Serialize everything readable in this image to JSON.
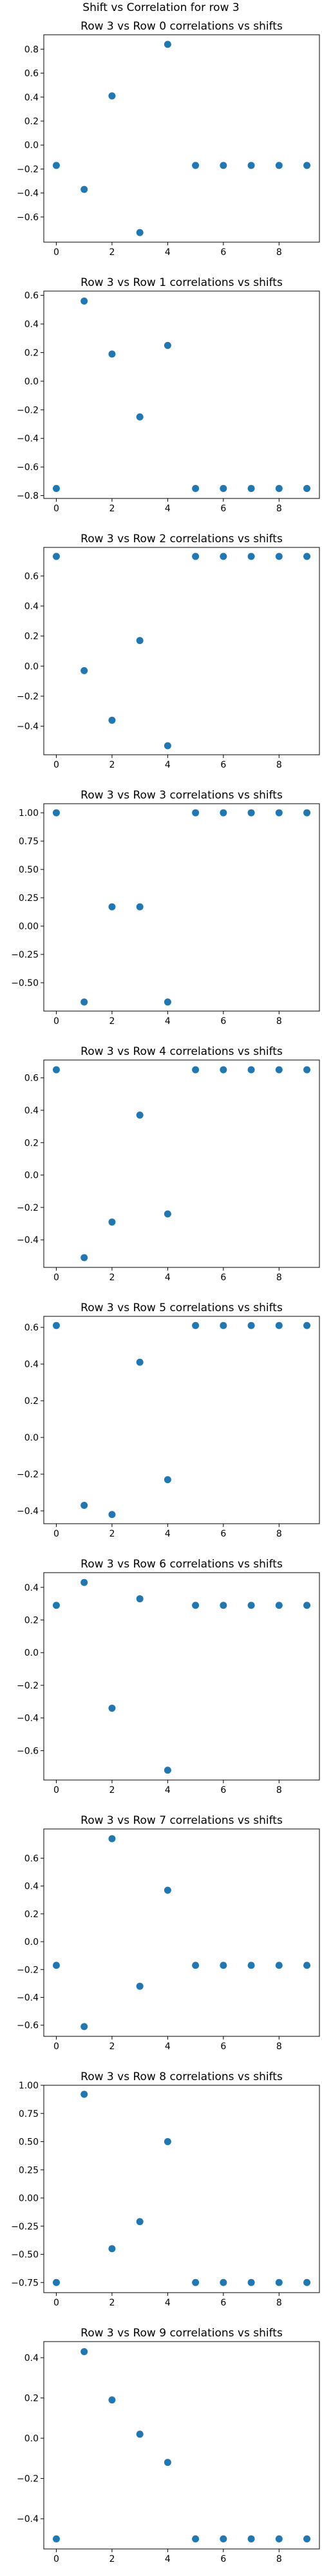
{
  "figure": {
    "suptitle": "Shift vs Correlation for row 3"
  },
  "style": {
    "marker_color": "#1f77b4"
  },
  "chart_data": [
    {
      "type": "scatter",
      "title": "Row 3 vs Row 0 correlations vs shifts",
      "x": [
        0,
        1,
        2,
        3,
        4,
        5,
        6,
        7,
        8,
        9
      ],
      "y": [
        -0.17,
        -0.37,
        0.41,
        -0.73,
        0.84,
        -0.17,
        -0.17,
        -0.17,
        -0.17,
        -0.17
      ],
      "xticks": [
        0,
        2,
        4,
        6,
        8
      ],
      "yticks": [
        -0.6,
        -0.4,
        -0.2,
        0.0,
        0.2,
        0.4,
        0.6,
        0.8
      ],
      "ytick_labels": [
        "−0.6",
        "−0.4",
        "−0.2",
        "0.0",
        "0.2",
        "0.4",
        "0.6",
        "0.8"
      ],
      "xlim": [
        -0.45,
        9.45
      ],
      "ylim": [
        -0.81,
        0.92
      ]
    },
    {
      "type": "scatter",
      "title": "Row 3 vs Row 1 correlations vs shifts",
      "x": [
        0,
        1,
        2,
        3,
        4,
        5,
        6,
        7,
        8,
        9
      ],
      "y": [
        -0.75,
        0.56,
        0.19,
        -0.25,
        0.25,
        -0.75,
        -0.75,
        -0.75,
        -0.75,
        -0.75
      ],
      "xticks": [
        0,
        2,
        4,
        6,
        8
      ],
      "yticks": [
        -0.8,
        -0.6,
        -0.4,
        -0.2,
        0.0,
        0.2,
        0.4,
        0.6
      ],
      "ytick_labels": [
        "−0.8",
        "−0.6",
        "−0.4",
        "−0.2",
        "0.0",
        "0.2",
        "0.4",
        "0.6"
      ],
      "xlim": [
        -0.45,
        9.45
      ],
      "ylim": [
        -0.82,
        0.63
      ]
    },
    {
      "type": "scatter",
      "title": "Row 3 vs Row 2 correlations vs shifts",
      "x": [
        0,
        1,
        2,
        3,
        4,
        5,
        6,
        7,
        8,
        9
      ],
      "y": [
        0.73,
        -0.03,
        -0.36,
        0.17,
        -0.53,
        0.73,
        0.73,
        0.73,
        0.73,
        0.73
      ],
      "xticks": [
        0,
        2,
        4,
        6,
        8
      ],
      "yticks": [
        -0.4,
        -0.2,
        0.0,
        0.2,
        0.4,
        0.6
      ],
      "ytick_labels": [
        "−0.4",
        "−0.2",
        "0.0",
        "0.2",
        "0.4",
        "0.6"
      ],
      "xlim": [
        -0.45,
        9.45
      ],
      "ylim": [
        -0.59,
        0.79
      ]
    },
    {
      "type": "scatter",
      "title": "Row 3 vs Row 3 correlations vs shifts",
      "x": [
        0,
        1,
        2,
        3,
        4,
        5,
        6,
        7,
        8,
        9
      ],
      "y": [
        1.0,
        -0.67,
        0.17,
        0.17,
        -0.67,
        1.0,
        1.0,
        1.0,
        1.0,
        1.0
      ],
      "xticks": [
        0,
        2,
        4,
        6,
        8
      ],
      "yticks": [
        -0.5,
        -0.25,
        0.0,
        0.25,
        0.5,
        0.75,
        1.0
      ],
      "ytick_labels": [
        "−0.50",
        "−0.25",
        "0.00",
        "0.25",
        "0.50",
        "0.75",
        "1.00"
      ],
      "xlim": [
        -0.45,
        9.45
      ],
      "ylim": [
        -0.75,
        1.08
      ]
    },
    {
      "type": "scatter",
      "title": "Row 3 vs Row 4 correlations vs shifts",
      "x": [
        0,
        1,
        2,
        3,
        4,
        5,
        6,
        7,
        8,
        9
      ],
      "y": [
        0.65,
        -0.51,
        -0.29,
        0.37,
        -0.24,
        0.65,
        0.65,
        0.65,
        0.65,
        0.65
      ],
      "xticks": [
        0,
        2,
        4,
        6,
        8
      ],
      "yticks": [
        -0.4,
        -0.2,
        0.0,
        0.2,
        0.4,
        0.6
      ],
      "ytick_labels": [
        "−0.4",
        "−0.2",
        "0.0",
        "0.2",
        "0.4",
        "0.6"
      ],
      "xlim": [
        -0.45,
        9.45
      ],
      "ylim": [
        -0.57,
        0.71
      ]
    },
    {
      "type": "scatter",
      "title": "Row 3 vs Row 5 correlations vs shifts",
      "x": [
        0,
        1,
        2,
        3,
        4,
        5,
        6,
        7,
        8,
        9
      ],
      "y": [
        0.61,
        -0.37,
        -0.42,
        0.41,
        -0.23,
        0.61,
        0.61,
        0.61,
        0.61,
        0.61
      ],
      "xticks": [
        0,
        2,
        4,
        6,
        8
      ],
      "yticks": [
        -0.4,
        -0.2,
        0.0,
        0.2,
        0.4,
        0.6
      ],
      "ytick_labels": [
        "−0.4",
        "−0.2",
        "0.0",
        "0.2",
        "0.4",
        "0.6"
      ],
      "xlim": [
        -0.45,
        9.45
      ],
      "ylim": [
        -0.47,
        0.66
      ]
    },
    {
      "type": "scatter",
      "title": "Row 3 vs Row 6 correlations vs shifts",
      "x": [
        0,
        1,
        2,
        3,
        4,
        5,
        6,
        7,
        8,
        9
      ],
      "y": [
        0.29,
        0.43,
        -0.34,
        0.33,
        -0.72,
        0.29,
        0.29,
        0.29,
        0.29,
        0.29
      ],
      "xticks": [
        0,
        2,
        4,
        6,
        8
      ],
      "yticks": [
        -0.6,
        -0.4,
        -0.2,
        0.0,
        0.2,
        0.4
      ],
      "ytick_labels": [
        "−0.6",
        "−0.4",
        "−0.2",
        "0.0",
        "0.2",
        "0.4"
      ],
      "xlim": [
        -0.45,
        9.45
      ],
      "ylim": [
        -0.78,
        0.49
      ]
    },
    {
      "type": "scatter",
      "title": "Row 3 vs Row 7 correlations vs shifts",
      "x": [
        0,
        1,
        2,
        3,
        4,
        5,
        6,
        7,
        8,
        9
      ],
      "y": [
        -0.17,
        -0.61,
        0.74,
        -0.32,
        0.37,
        -0.17,
        -0.17,
        -0.17,
        -0.17,
        -0.17
      ],
      "xticks": [
        0,
        2,
        4,
        6,
        8
      ],
      "yticks": [
        -0.6,
        -0.4,
        -0.2,
        0.0,
        0.2,
        0.4,
        0.6
      ],
      "ytick_labels": [
        "−0.6",
        "−0.4",
        "−0.2",
        "0.0",
        "0.2",
        "0.4",
        "0.6"
      ],
      "xlim": [
        -0.45,
        9.45
      ],
      "ylim": [
        -0.68,
        0.81
      ]
    },
    {
      "type": "scatter",
      "title": "Row 3 vs Row 8 correlations vs shifts",
      "x": [
        0,
        1,
        2,
        3,
        4,
        5,
        6,
        7,
        8,
        9
      ],
      "y": [
        -0.75,
        0.92,
        -0.45,
        -0.21,
        0.5,
        -0.75,
        -0.75,
        -0.75,
        -0.75,
        -0.75
      ],
      "xticks": [
        0,
        2,
        4,
        6,
        8
      ],
      "yticks": [
        -0.75,
        -0.5,
        -0.25,
        0.0,
        0.25,
        0.5,
        0.75,
        1.0
      ],
      "ytick_labels": [
        "−0.75",
        "−0.50",
        "−0.25",
        "0.00",
        "0.25",
        "0.50",
        "0.75",
        "1.00"
      ],
      "xlim": [
        -0.45,
        9.45
      ],
      "ylim": [
        -0.84,
        1.0
      ]
    },
    {
      "type": "scatter",
      "title": "Row 3 vs Row 9 correlations vs shifts",
      "x": [
        0,
        1,
        2,
        3,
        4,
        5,
        6,
        7,
        8,
        9
      ],
      "y": [
        -0.5,
        0.43,
        0.19,
        0.02,
        -0.12,
        -0.5,
        -0.5,
        -0.5,
        -0.5,
        -0.5
      ],
      "xticks": [
        0,
        2,
        4,
        6,
        8
      ],
      "yticks": [
        -0.4,
        -0.2,
        0.0,
        0.2,
        0.4
      ],
      "ytick_labels": [
        "−0.4",
        "−0.2",
        "0.0",
        "0.2",
        "0.4"
      ],
      "xlim": [
        -0.45,
        9.45
      ],
      "ylim": [
        -0.55,
        0.48
      ]
    }
  ]
}
